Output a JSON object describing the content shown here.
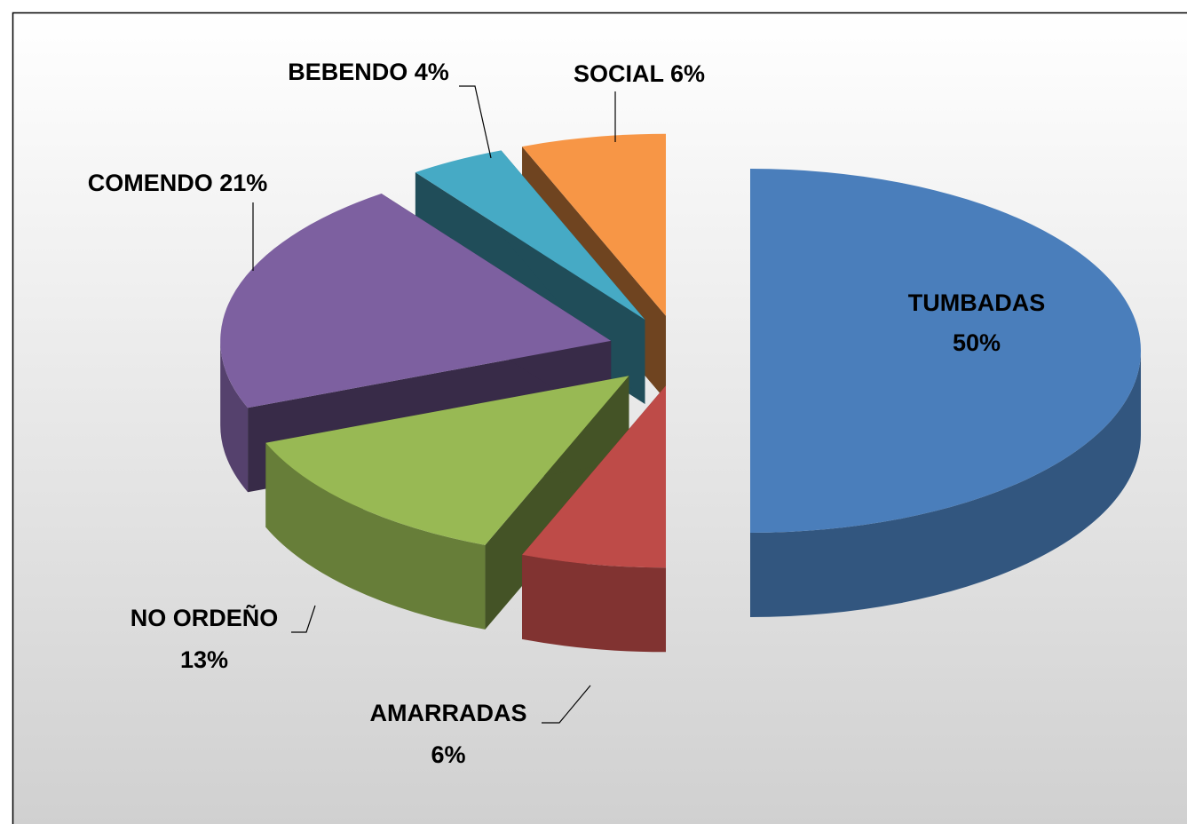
{
  "chart_data": {
    "type": "pie3d",
    "categories": [
      "TUMBADAS",
      "AMARRADAS",
      "NO ORDEÑO",
      "COMENDO",
      "BEBENDO",
      "SOCIAL"
    ],
    "values": [
      50,
      6,
      13,
      21,
      4,
      6
    ],
    "value_labels": [
      "50%",
      "6%",
      "13%",
      "21%",
      "4%",
      "6%"
    ],
    "colors": [
      "#4a7ebb",
      "#be4b48",
      "#98b954",
      "#7d60a0",
      "#46aac5",
      "#f79646"
    ]
  }
}
